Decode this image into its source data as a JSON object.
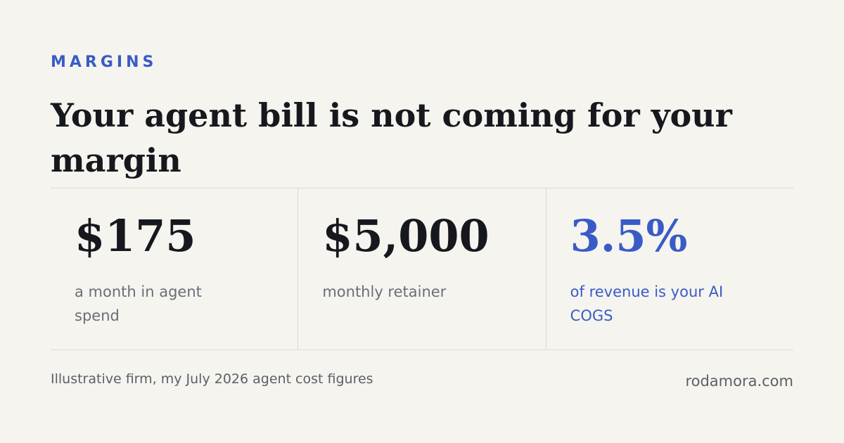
{
  "header": {
    "kicker": "MARGINS",
    "title": "Your agent bill is not coming for your margin"
  },
  "stats": [
    {
      "value": "$175",
      "label": "a month in agent spend"
    },
    {
      "value": "$5,000",
      "label": "monthly retainer"
    },
    {
      "value": "3.5%",
      "label": "of revenue is your AI COGS"
    }
  ],
  "footer": {
    "note": "Illustrative firm, my July 2026 agent cost figures",
    "site": "rodamora.com"
  }
}
